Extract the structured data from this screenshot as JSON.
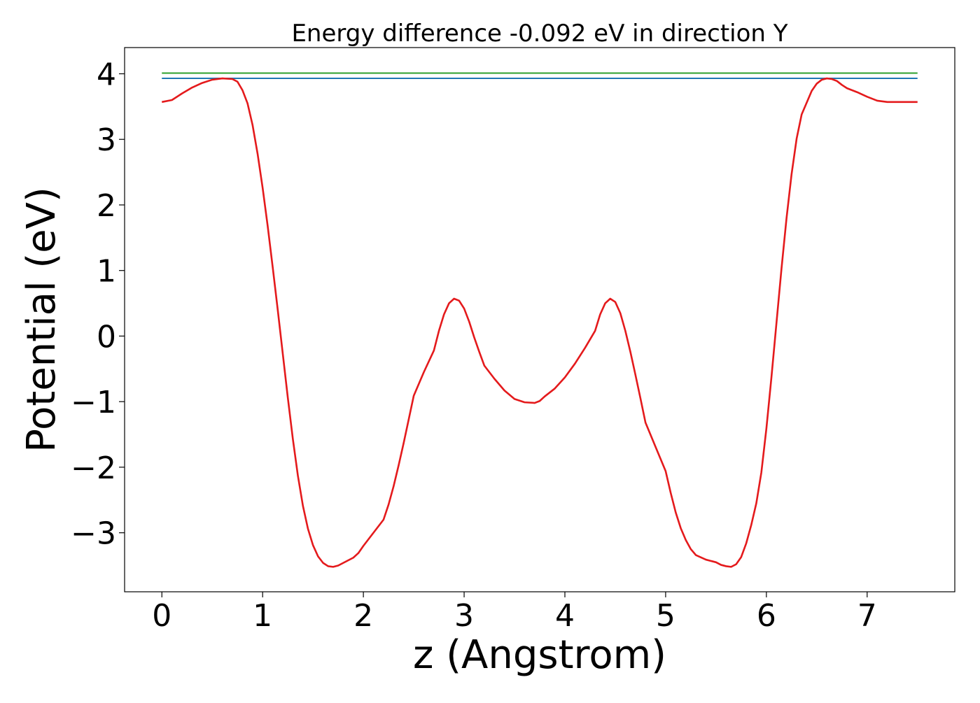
{
  "chart_data": {
    "type": "line",
    "title": "Energy difference -0.092 eV in direction Y",
    "xlabel": "z (Angstrom)",
    "ylabel": "Potential (eV)",
    "xlim": [
      -0.37,
      7.87
    ],
    "ylim": [
      -3.9,
      4.4
    ],
    "x_ticks": [
      0,
      1,
      2,
      3,
      4,
      5,
      6,
      7
    ],
    "x_tick_labels": [
      "0",
      "1",
      "2",
      "3",
      "4",
      "5",
      "6",
      "7"
    ],
    "y_ticks": [
      -3,
      -2,
      -1,
      0,
      1,
      2,
      3,
      4
    ],
    "y_tick_labels": [
      "−3",
      "−2",
      "−1",
      "0",
      "1",
      "2",
      "3",
      "4"
    ],
    "grid": false,
    "series": [
      {
        "color": "#2ca02c",
        "x": [
          0,
          7.5
        ],
        "y": [
          4.01,
          4.01
        ]
      },
      {
        "color": "#1f77b4",
        "x": [
          0,
          7.5
        ],
        "y": [
          3.93,
          3.93
        ]
      },
      {
        "color": "#e41a1c",
        "x": [
          0,
          0.1,
          0.2,
          0.3,
          0.4,
          0.5,
          0.6,
          0.7,
          0.75,
          0.8,
          0.85,
          0.9,
          0.95,
          1.0,
          1.05,
          1.1,
          1.15,
          1.2,
          1.25,
          1.3,
          1.35,
          1.4,
          1.45,
          1.5,
          1.55,
          1.6,
          1.65,
          1.7,
          1.75,
          1.8,
          1.85,
          1.9,
          1.95,
          2.0,
          2.1,
          2.2,
          2.25,
          2.3,
          2.35,
          2.4,
          2.45,
          2.5,
          2.6,
          2.7,
          2.75,
          2.8,
          2.85,
          2.9,
          2.95,
          3.0,
          3.05,
          3.1,
          3.15,
          3.2,
          3.3,
          3.4,
          3.5,
          3.6,
          3.7,
          3.75,
          3.8,
          3.9,
          4.0,
          4.1,
          4.2,
          4.3,
          4.35,
          4.4,
          4.45,
          4.5,
          4.55,
          4.6,
          4.65,
          4.7,
          4.75,
          4.8,
          4.9,
          5.0,
          5.05,
          5.1,
          5.15,
          5.2,
          5.25,
          5.3,
          5.4,
          5.5,
          5.55,
          5.6,
          5.65,
          5.7,
          5.75,
          5.8,
          5.85,
          5.9,
          5.95,
          6.0,
          6.05,
          6.1,
          6.15,
          6.2,
          6.25,
          6.3,
          6.35,
          6.4,
          6.45,
          6.5,
          6.55,
          6.6,
          6.65,
          6.7,
          6.75,
          6.8,
          6.9,
          7.0,
          7.1,
          7.2,
          7.3,
          7.4,
          7.5
        ],
        "y": [
          3.57,
          3.6,
          3.7,
          3.79,
          3.86,
          3.91,
          3.93,
          3.92,
          3.88,
          3.75,
          3.55,
          3.22,
          2.78,
          2.26,
          1.68,
          1.05,
          0.4,
          -0.27,
          -0.94,
          -1.57,
          -2.13,
          -2.59,
          -2.94,
          -3.19,
          -3.36,
          -3.46,
          -3.51,
          -3.52,
          -3.5,
          -3.46,
          -3.42,
          -3.38,
          -3.31,
          -3.2,
          -3.0,
          -2.8,
          -2.57,
          -2.29,
          -1.97,
          -1.63,
          -1.27,
          -0.91,
          -0.55,
          -0.22,
          0.08,
          0.33,
          0.5,
          0.57,
          0.54,
          0.42,
          0.22,
          -0.02,
          -0.24,
          -0.45,
          -0.65,
          -0.83,
          -0.96,
          -1.01,
          -1.02,
          -0.99,
          -0.92,
          -0.8,
          -0.63,
          -0.42,
          -0.18,
          0.08,
          0.33,
          0.5,
          0.57,
          0.52,
          0.35,
          0.08,
          -0.24,
          -0.59,
          -0.95,
          -1.32,
          -1.69,
          -2.06,
          -2.39,
          -2.69,
          -2.93,
          -3.11,
          -3.25,
          -3.34,
          -3.41,
          -3.45,
          -3.49,
          -3.51,
          -3.52,
          -3.48,
          -3.37,
          -3.16,
          -2.88,
          -2.55,
          -2.08,
          -1.41,
          -0.63,
          0.2,
          1.03,
          1.8,
          2.47,
          3.01,
          3.38,
          3.56,
          3.74,
          3.85,
          3.91,
          3.93,
          3.92,
          3.89,
          3.83,
          3.78,
          3.72,
          3.65,
          3.59,
          3.57,
          3.57,
          3.57,
          3.57
        ],
        "x_display": [
          0,
          0.1,
          0.2,
          0.3,
          0.4,
          0.5,
          0.6,
          0.7,
          0.75,
          0.8,
          0.85,
          0.9,
          0.95,
          1.0,
          1.05,
          1.1,
          1.15,
          1.2,
          1.25,
          1.3,
          1.35,
          1.4,
          1.45,
          1.5,
          1.55,
          1.6,
          1.65,
          1.7,
          1.75,
          1.8,
          1.85,
          1.9,
          1.95,
          2.0,
          2.1,
          2.2,
          2.25,
          2.3,
          2.35,
          2.4,
          2.45,
          2.5,
          2.6,
          2.7,
          2.75,
          2.8,
          2.85,
          2.9,
          2.95,
          3.0,
          3.05,
          3.1,
          3.15,
          3.2,
          3.3,
          3.4,
          3.5,
          3.6,
          3.7,
          3.75,
          3.8,
          3.9,
          4.0,
          4.1,
          4.2,
          4.3,
          4.35,
          4.4,
          4.45,
          4.5,
          4.55,
          4.6,
          4.65,
          4.7,
          4.75,
          4.8,
          4.9,
          5.0,
          5.05,
          5.1,
          5.15,
          5.2,
          5.25,
          5.3,
          5.4,
          5.5,
          5.55,
          5.6,
          5.65,
          5.7,
          5.75,
          5.8,
          5.85,
          5.9,
          5.95,
          6.0,
          6.05,
          6.1,
          6.15,
          6.2,
          6.25,
          6.3,
          6.35,
          6.4,
          6.45,
          6.5,
          6.55,
          6.6,
          6.65,
          6.7,
          6.75,
          6.8,
          6.9,
          7.0,
          7.1,
          7.2,
          7.3,
          7.4,
          7.5
        ]
      }
    ]
  }
}
